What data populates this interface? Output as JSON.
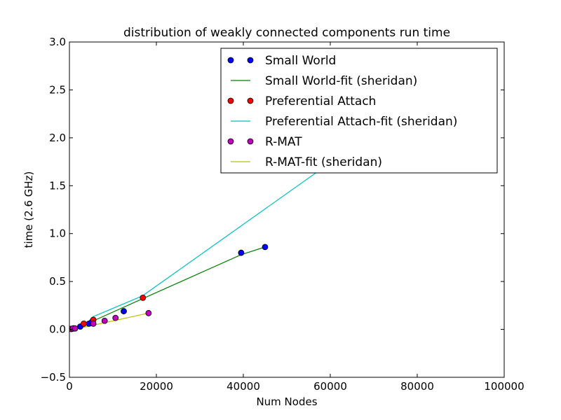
{
  "chart_data": {
    "type": "scatter",
    "title": "distribution of weakly connected components run time",
    "xlabel": "Num Nodes",
    "ylabel": "time (2.6 GHz)",
    "xlim": [
      0,
      100000
    ],
    "ylim": [
      -0.5,
      3.0
    ],
    "xticks": [
      0,
      20000,
      40000,
      60000,
      80000,
      100000
    ],
    "xtick_labels": [
      "0",
      "20000",
      "40000",
      "60000",
      "80000",
      "100000"
    ],
    "yticks": [
      -0.5,
      0.0,
      0.5,
      1.0,
      1.5,
      2.0,
      2.5,
      3.0
    ],
    "ytick_labels": [
      "−0.5",
      "0.0",
      "0.5",
      "1.0",
      "1.5",
      "2.0",
      "2.5",
      "3.0"
    ],
    "grid": false,
    "legend_position": "top-right",
    "series": [
      {
        "name": "Small World",
        "kind": "points",
        "color": "#0000ff",
        "points": [
          [
            500,
            0.005
          ],
          [
            1000,
            0.01
          ],
          [
            2500,
            0.03
          ],
          [
            4500,
            0.06
          ],
          [
            5200,
            0.08
          ],
          [
            12500,
            0.19
          ],
          [
            39500,
            0.8
          ],
          [
            45000,
            0.86
          ]
        ]
      },
      {
        "name": "Small World-fit (sheridan)",
        "kind": "line",
        "color": "#008000",
        "points": [
          [
            0,
            -0.01
          ],
          [
            2600,
            0.03
          ],
          [
            16800,
            0.32
          ],
          [
            39500,
            0.78
          ],
          [
            45000,
            0.86
          ]
        ]
      },
      {
        "name": "Preferential Attach",
        "kind": "points",
        "color": "#ff0000",
        "points": [
          [
            500,
            0.005
          ],
          [
            1000,
            0.01
          ],
          [
            3300,
            0.06
          ],
          [
            5500,
            0.1
          ],
          [
            16900,
            0.33
          ]
        ]
      },
      {
        "name": "Preferential Attach-fit (sheridan)",
        "kind": "line",
        "color": "#00bfbf",
        "points": [
          [
            5300,
            0.13
          ],
          [
            16800,
            0.35
          ],
          [
            57500,
            1.66
          ],
          [
            63000,
            1.84
          ]
        ]
      },
      {
        "name": "R-MAT",
        "kind": "points",
        "color": "#bf00bf",
        "points": [
          [
            300,
            0.005
          ],
          [
            800,
            0.01
          ],
          [
            1300,
            0.01
          ],
          [
            5500,
            0.06
          ],
          [
            8100,
            0.09
          ],
          [
            10600,
            0.12
          ],
          [
            18200,
            0.17
          ]
        ]
      },
      {
        "name": "R-MAT-fit (sheridan)",
        "kind": "line",
        "color": "#bfbf00",
        "points": [
          [
            0,
            -0.01
          ],
          [
            18200,
            0.17
          ]
        ]
      }
    ]
  }
}
